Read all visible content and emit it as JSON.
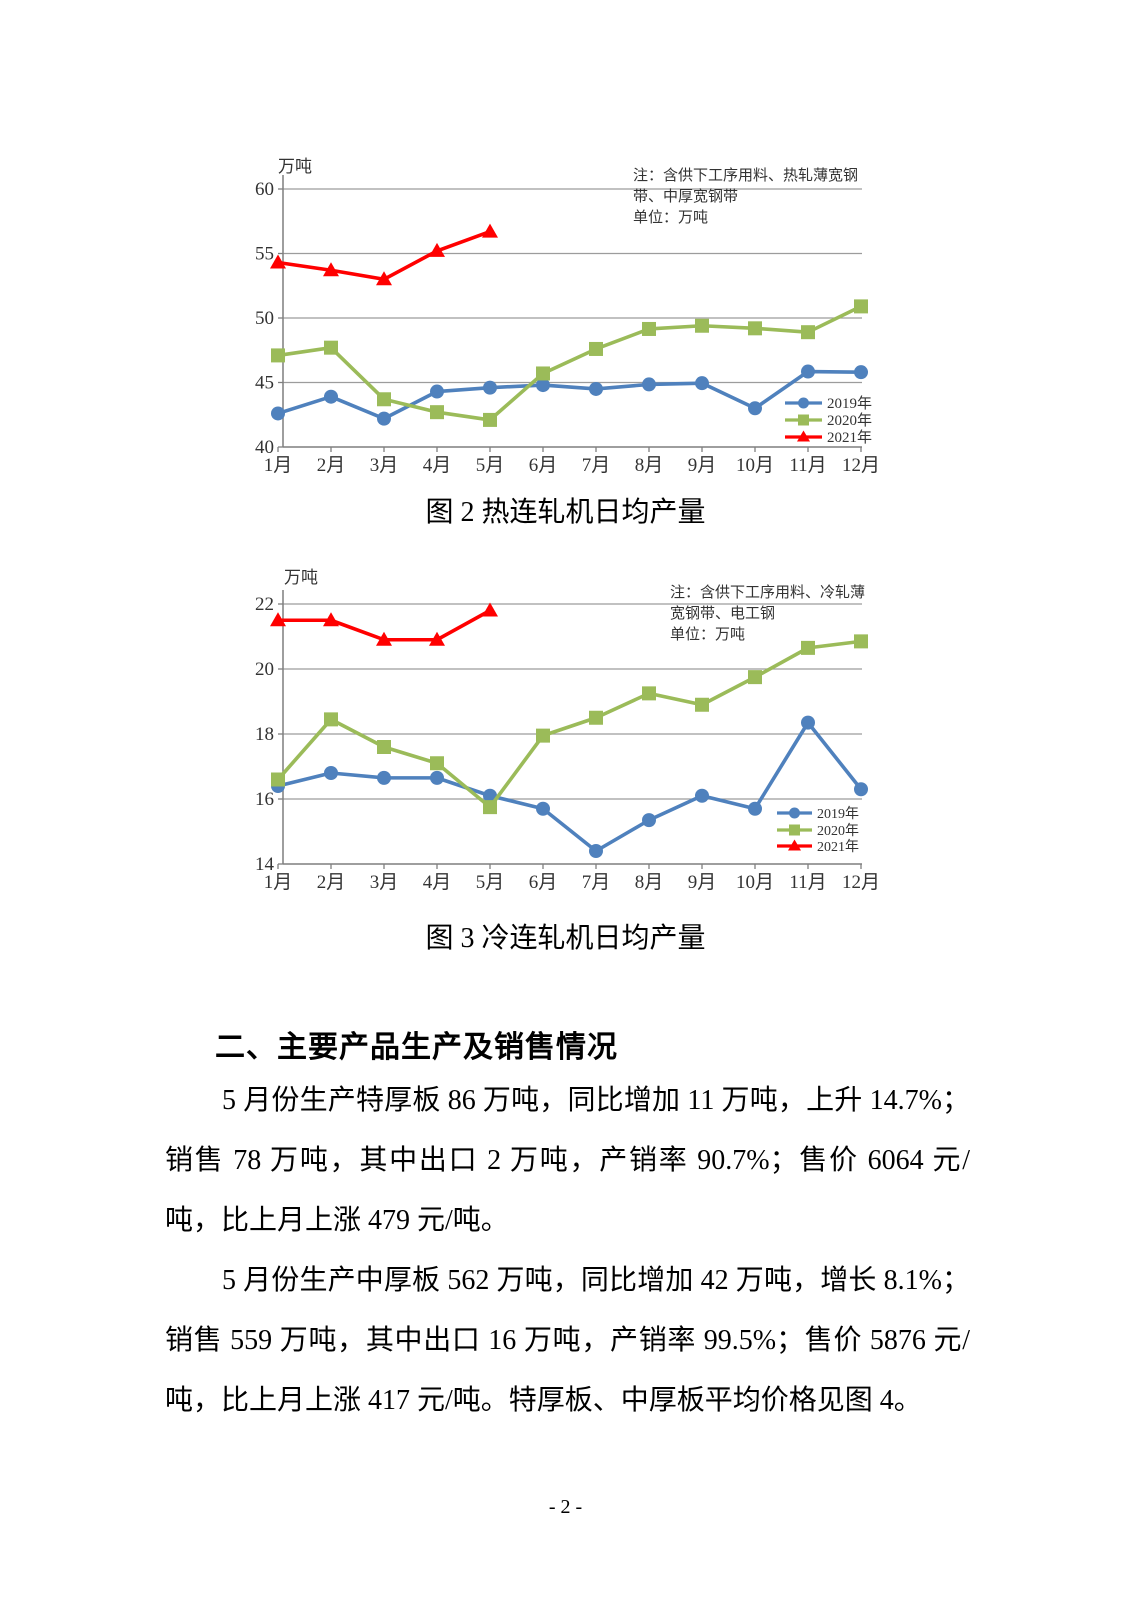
{
  "chart_data": [
    {
      "type": "line",
      "title": "图 2  热连轧机日均产量",
      "unit_label": "万吨",
      "note_lines": [
        "注：含供下工序用料、热轧薄宽钢",
        "带、中厚宽钢带",
        "单位：万吨"
      ],
      "categories": [
        "1月",
        "2月",
        "3月",
        "4月",
        "5月",
        "6月",
        "7月",
        "8月",
        "9月",
        "10月",
        "11月",
        "12月"
      ],
      "series": [
        {
          "name": "2019年",
          "color": "#4F81BD",
          "marker": "circle",
          "values": [
            42.6,
            43.9,
            42.2,
            44.3,
            44.6,
            44.8,
            44.5,
            44.85,
            44.95,
            43.0,
            45.85,
            45.8
          ]
        },
        {
          "name": "2020年",
          "color": "#9BBB59",
          "marker": "square",
          "values": [
            47.1,
            47.7,
            43.7,
            42.7,
            42.1,
            45.7,
            47.6,
            49.15,
            49.4,
            49.2,
            48.9,
            50.9
          ]
        },
        {
          "name": "2021年",
          "color": "#FF0000",
          "marker": "triangle",
          "values": [
            54.3,
            53.7,
            53.0,
            55.2,
            56.7,
            null,
            null,
            null,
            null,
            null,
            null,
            null
          ]
        }
      ],
      "ylim": [
        40,
        60
      ],
      "ytick_step": 5,
      "grid": true,
      "grid_color": "#9c9c9c",
      "axis_color": "#7f7f7f",
      "legend_position": "inside-bottom-right"
    },
    {
      "type": "line",
      "title": "图 3  冷连轧机日均产量",
      "unit_label": "万吨",
      "note_lines": [
        "注：含供下工序用料、冷轧薄",
        "宽钢带、电工钢",
        "单位：万吨"
      ],
      "categories": [
        "1月",
        "2月",
        "3月",
        "4月",
        "5月",
        "6月",
        "7月",
        "8月",
        "9月",
        "10月",
        "11月",
        "12月"
      ],
      "series": [
        {
          "name": "2019年",
          "color": "#4F81BD",
          "marker": "circle",
          "values": [
            16.4,
            16.8,
            16.65,
            16.65,
            16.1,
            15.7,
            14.4,
            15.35,
            16.1,
            15.7,
            18.35,
            16.3
          ]
        },
        {
          "name": "2020年",
          "color": "#9BBB59",
          "marker": "square",
          "values": [
            16.6,
            18.45,
            17.6,
            17.1,
            15.75,
            17.95,
            18.5,
            19.25,
            18.9,
            19.75,
            20.65,
            20.85
          ]
        },
        {
          "name": "2021年",
          "color": "#FF0000",
          "marker": "triangle",
          "values": [
            21.5,
            21.5,
            20.9,
            20.9,
            21.8,
            null,
            null,
            null,
            null,
            null,
            null,
            null
          ]
        }
      ],
      "ylim": [
        14,
        22
      ],
      "ytick_step": 2,
      "grid": true,
      "grid_color": "#9c9c9c",
      "axis_color": "#7f7f7f",
      "legend_position": "inside-bottom-right"
    }
  ],
  "section": {
    "heading": "二、主要产品生产及销售情况"
  },
  "paragraphs": [
    "5 月份生产特厚板 86 万吨，同比增加 11 万吨，上升 14.7%；销售 78 万吨，其中出口 2 万吨，产销率 90.7%；售价 6064 元/吨，比上月上涨 479 元/吨。",
    "5 月份生产中厚板 562 万吨，同比增加 42 万吨，增长 8.1%；销售 559 万吨，其中出口 16 万吨，产销率 99.5%；售价 5876 元/吨，比上月上涨 417 元/吨。特厚板、中厚板平均价格见图 4。"
  ],
  "page_number": "- 2 -"
}
